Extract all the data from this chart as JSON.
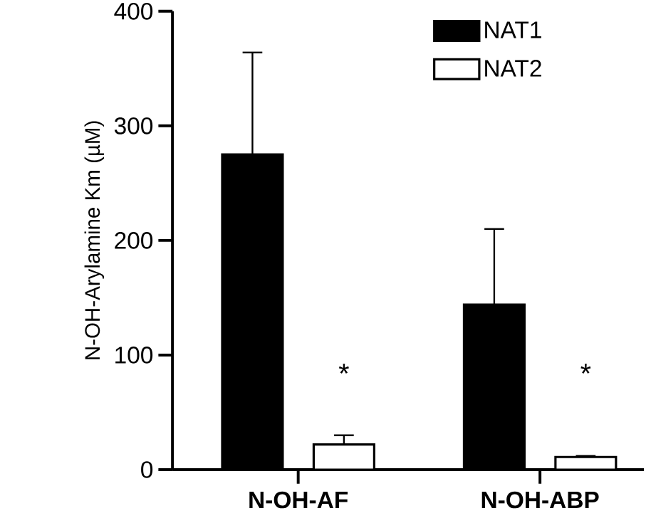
{
  "chart_data": {
    "type": "bar",
    "ylabel": "N-OH-Arylamine Km (µM)",
    "categories": [
      "N-OH-AF",
      "N-OH-ABP"
    ],
    "series": [
      {
        "name": "NAT1",
        "color": "#000000",
        "values": [
          275,
          144
        ],
        "errors": [
          [
            275,
            364
          ],
          [
            144,
            210
          ]
        ]
      },
      {
        "name": "NAT2",
        "color": "#ffffff",
        "values": [
          22,
          11
        ],
        "errors": [
          [
            22,
            30
          ],
          [
            11,
            12
          ]
        ]
      }
    ],
    "ylim": [
      0,
      400
    ],
    "yticks": [
      0,
      100,
      200,
      300,
      400
    ],
    "legend": "top right",
    "annotations": [
      "*",
      "*"
    ]
  }
}
